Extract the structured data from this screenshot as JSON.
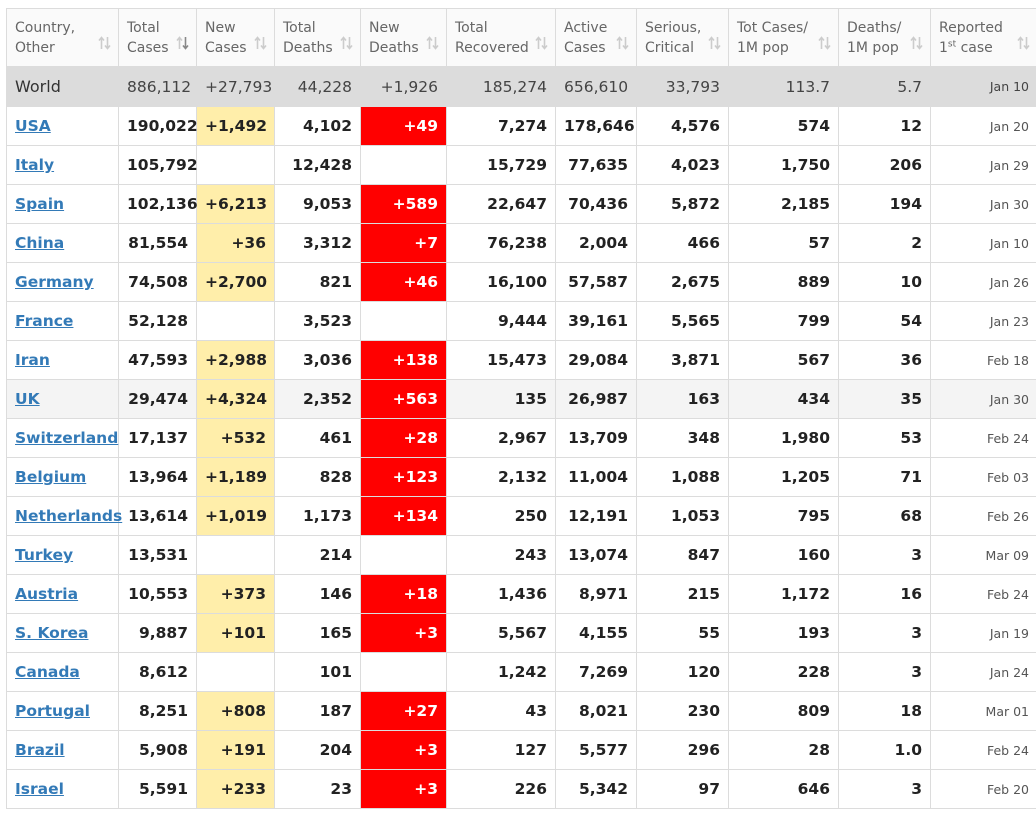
{
  "table": {
    "headers": [
      {
        "line1": "Country,",
        "line2": "Other",
        "sup": ""
      },
      {
        "line1": "Total",
        "line2": "Cases",
        "sup": ""
      },
      {
        "line1": "New",
        "line2": "Cases",
        "sup": ""
      },
      {
        "line1": "Total",
        "line2": "Deaths",
        "sup": ""
      },
      {
        "line1": "New",
        "line2": "Deaths",
        "sup": ""
      },
      {
        "line1": "Total",
        "line2": "Recovered",
        "sup": ""
      },
      {
        "line1": "Active",
        "line2": "Cases",
        "sup": ""
      },
      {
        "line1": "Serious,",
        "line2": "Critical",
        "sup": ""
      },
      {
        "line1": "Tot Cases/",
        "line2": "1M pop",
        "sup": ""
      },
      {
        "line1": "Deaths/",
        "line2": "1M pop",
        "sup": ""
      },
      {
        "line1": "Reported",
        "line2": " case",
        "sup": "st",
        "line2_prefix": "1"
      }
    ],
    "sorted_column_index": 1,
    "world": {
      "country": "World",
      "total_cases": "886,112",
      "new_cases": "+27,793",
      "total_deaths": "44,228",
      "new_deaths": "+1,926",
      "total_recovered": "185,274",
      "active_cases": "656,610",
      "serious_critical": "33,793",
      "tot_cases_per_1m": "113.7",
      "deaths_per_1m": "5.7",
      "reported": "Jan 10"
    },
    "rows": [
      {
        "country": "USA",
        "total_cases": "190,022",
        "new_cases": "+1,492",
        "total_deaths": "4,102",
        "new_deaths": "+49",
        "total_recovered": "7,274",
        "active_cases": "178,646",
        "serious_critical": "4,576",
        "tot_cases_per_1m": "574",
        "deaths_per_1m": "12",
        "reported": "Jan 20",
        "highlighted": false
      },
      {
        "country": "Italy",
        "total_cases": "105,792",
        "new_cases": "",
        "total_deaths": "12,428",
        "new_deaths": "",
        "total_recovered": "15,729",
        "active_cases": "77,635",
        "serious_critical": "4,023",
        "tot_cases_per_1m": "1,750",
        "deaths_per_1m": "206",
        "reported": "Jan 29",
        "highlighted": false
      },
      {
        "country": "Spain",
        "total_cases": "102,136",
        "new_cases": "+6,213",
        "total_deaths": "9,053",
        "new_deaths": "+589",
        "total_recovered": "22,647",
        "active_cases": "70,436",
        "serious_critical": "5,872",
        "tot_cases_per_1m": "2,185",
        "deaths_per_1m": "194",
        "reported": "Jan 30",
        "highlighted": false
      },
      {
        "country": "China",
        "total_cases": "81,554",
        "new_cases": "+36",
        "total_deaths": "3,312",
        "new_deaths": "+7",
        "total_recovered": "76,238",
        "active_cases": "2,004",
        "serious_critical": "466",
        "tot_cases_per_1m": "57",
        "deaths_per_1m": "2",
        "reported": "Jan 10",
        "highlighted": false
      },
      {
        "country": "Germany",
        "total_cases": "74,508",
        "new_cases": "+2,700",
        "total_deaths": "821",
        "new_deaths": "+46",
        "total_recovered": "16,100",
        "active_cases": "57,587",
        "serious_critical": "2,675",
        "tot_cases_per_1m": "889",
        "deaths_per_1m": "10",
        "reported": "Jan 26",
        "highlighted": false
      },
      {
        "country": "France",
        "total_cases": "52,128",
        "new_cases": "",
        "total_deaths": "3,523",
        "new_deaths": "",
        "total_recovered": "9,444",
        "active_cases": "39,161",
        "serious_critical": "5,565",
        "tot_cases_per_1m": "799",
        "deaths_per_1m": "54",
        "reported": "Jan 23",
        "highlighted": false
      },
      {
        "country": "Iran",
        "total_cases": "47,593",
        "new_cases": "+2,988",
        "total_deaths": "3,036",
        "new_deaths": "+138",
        "total_recovered": "15,473",
        "active_cases": "29,084",
        "serious_critical": "3,871",
        "tot_cases_per_1m": "567",
        "deaths_per_1m": "36",
        "reported": "Feb 18",
        "highlighted": false
      },
      {
        "country": "UK",
        "total_cases": "29,474",
        "new_cases": "+4,324",
        "total_deaths": "2,352",
        "new_deaths": "+563",
        "total_recovered": "135",
        "active_cases": "26,987",
        "serious_critical": "163",
        "tot_cases_per_1m": "434",
        "deaths_per_1m": "35",
        "reported": "Jan 30",
        "highlighted": true
      },
      {
        "country": "Switzerland",
        "total_cases": "17,137",
        "new_cases": "+532",
        "total_deaths": "461",
        "new_deaths": "+28",
        "total_recovered": "2,967",
        "active_cases": "13,709",
        "serious_critical": "348",
        "tot_cases_per_1m": "1,980",
        "deaths_per_1m": "53",
        "reported": "Feb 24",
        "highlighted": false
      },
      {
        "country": "Belgium",
        "total_cases": "13,964",
        "new_cases": "+1,189",
        "total_deaths": "828",
        "new_deaths": "+123",
        "total_recovered": "2,132",
        "active_cases": "11,004",
        "serious_critical": "1,088",
        "tot_cases_per_1m": "1,205",
        "deaths_per_1m": "71",
        "reported": "Feb 03",
        "highlighted": false
      },
      {
        "country": "Netherlands",
        "total_cases": "13,614",
        "new_cases": "+1,019",
        "total_deaths": "1,173",
        "new_deaths": "+134",
        "total_recovered": "250",
        "active_cases": "12,191",
        "serious_critical": "1,053",
        "tot_cases_per_1m": "795",
        "deaths_per_1m": "68",
        "reported": "Feb 26",
        "highlighted": false
      },
      {
        "country": "Turkey",
        "total_cases": "13,531",
        "new_cases": "",
        "total_deaths": "214",
        "new_deaths": "",
        "total_recovered": "243",
        "active_cases": "13,074",
        "serious_critical": "847",
        "tot_cases_per_1m": "160",
        "deaths_per_1m": "3",
        "reported": "Mar 09",
        "highlighted": false
      },
      {
        "country": "Austria",
        "total_cases": "10,553",
        "new_cases": "+373",
        "total_deaths": "146",
        "new_deaths": "+18",
        "total_recovered": "1,436",
        "active_cases": "8,971",
        "serious_critical": "215",
        "tot_cases_per_1m": "1,172",
        "deaths_per_1m": "16",
        "reported": "Feb 24",
        "highlighted": false
      },
      {
        "country": "S. Korea",
        "total_cases": "9,887",
        "new_cases": "+101",
        "total_deaths": "165",
        "new_deaths": "+3",
        "total_recovered": "5,567",
        "active_cases": "4,155",
        "serious_critical": "55",
        "tot_cases_per_1m": "193",
        "deaths_per_1m": "3",
        "reported": "Jan 19",
        "highlighted": false
      },
      {
        "country": "Canada",
        "total_cases": "8,612",
        "new_cases": "",
        "total_deaths": "101",
        "new_deaths": "",
        "total_recovered": "1,242",
        "active_cases": "7,269",
        "serious_critical": "120",
        "tot_cases_per_1m": "228",
        "deaths_per_1m": "3",
        "reported": "Jan 24",
        "highlighted": false
      },
      {
        "country": "Portugal",
        "total_cases": "8,251",
        "new_cases": "+808",
        "total_deaths": "187",
        "new_deaths": "+27",
        "total_recovered": "43",
        "active_cases": "8,021",
        "serious_critical": "230",
        "tot_cases_per_1m": "809",
        "deaths_per_1m": "18",
        "reported": "Mar 01",
        "highlighted": false
      },
      {
        "country": "Brazil",
        "total_cases": "5,908",
        "new_cases": "+191",
        "total_deaths": "204",
        "new_deaths": "+3",
        "total_recovered": "127",
        "active_cases": "5,577",
        "serious_critical": "296",
        "tot_cases_per_1m": "28",
        "deaths_per_1m": "1.0",
        "reported": "Feb 24",
        "highlighted": false
      },
      {
        "country": "Israel",
        "total_cases": "5,591",
        "new_cases": "+233",
        "total_deaths": "23",
        "new_deaths": "+3",
        "total_recovered": "226",
        "active_cases": "5,342",
        "serious_critical": "97",
        "tot_cases_per_1m": "646",
        "deaths_per_1m": "3",
        "reported": "Feb 20",
        "highlighted": false
      }
    ]
  },
  "colors": {
    "link": "#337ab7",
    "new_cases_bg": "#ffeeaa",
    "new_deaths_bg": "#ff0000",
    "world_row_bg": "#dcdcdc",
    "header_text": "#666666",
    "sort_icon": "#cccccc",
    "sort_icon_active": "#888888"
  },
  "icons": {
    "sort": "sort-arrows-icon",
    "sort_active": "sort-descending-icon"
  }
}
